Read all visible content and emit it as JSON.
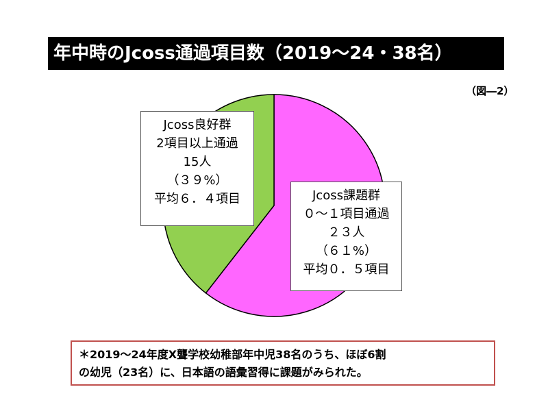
{
  "title": "年中時のJcoss通過項目数（2019～24・38名）",
  "figure_label": "（図―2）",
  "chart_data": {
    "type": "pie",
    "start_angle_deg": 0,
    "direction": "clockwise",
    "slices": [
      {
        "key": "issue",
        "value": 23,
        "percent": 61,
        "color": "#ff66ff",
        "lines": [
          "Jcoss課題群",
          "０～１項目通過",
          "２３人",
          "（６１%）",
          "平均０．５項目"
        ]
      },
      {
        "key": "good",
        "value": 15,
        "percent": 39,
        "color": "#92d050",
        "lines": [
          "Jcoss良好群",
          "2項目以上通過",
          "15人",
          "（３９%）",
          "平均６．４項目"
        ]
      }
    ]
  },
  "footnote": {
    "line1": "＊2019～24年度X聾学校幼稚部年中児38名のうち、ほぼ6割",
    "line2": "の幼児（23名）に、日本語の語彙習得に課題がみられた。"
  }
}
